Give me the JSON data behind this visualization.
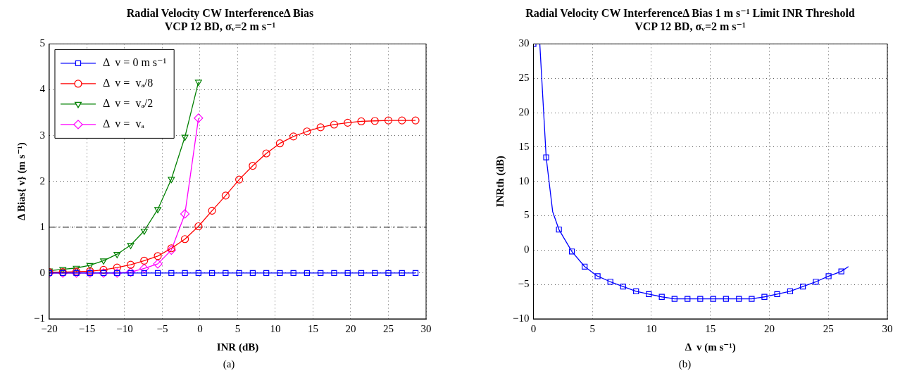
{
  "chart_data": [
    {
      "type": "line",
      "title": "Radial Velocity CW InterferenceΔ Bias",
      "subtitle": "VCP 12 BD, σᵥ=2 m s⁻¹",
      "xlabel": "INR (dB)",
      "ylabel": "Δ Bias{ v} (m s⁻¹)",
      "x": [
        -20,
        -18.2,
        -16.4,
        -14.6,
        -12.8,
        -11,
        -9.2,
        -7.4,
        -5.6,
        -3.8,
        -2,
        -0.2,
        1.6,
        3.4,
        5.2,
        7,
        8.8,
        10.6,
        12.4,
        14.2,
        16,
        17.8,
        19.6,
        21.4,
        23.2,
        25,
        26.8,
        28.6
      ],
      "series": [
        {
          "name": "Δ  v = 0 m s⁻¹",
          "color": "#0000ff",
          "marker": "square",
          "values": [
            0,
            0,
            0,
            0,
            0,
            0,
            0,
            0,
            0,
            0,
            0,
            0,
            0,
            0,
            0,
            0,
            0,
            0,
            0,
            0,
            0,
            0,
            0,
            0,
            0,
            0,
            0,
            0
          ]
        },
        {
          "name": "Δ  v =  vₐ/8",
          "color": "#ff0000",
          "marker": "circle",
          "values": [
            0.02,
            0.02,
            0.03,
            0.04,
            0.07,
            0.12,
            0.18,
            0.27,
            0.37,
            0.54,
            0.74,
            1.02,
            1.36,
            1.69,
            2.04,
            2.34,
            2.61,
            2.83,
            2.98,
            3.09,
            3.18,
            3.24,
            3.28,
            3.31,
            3.32,
            3.33,
            3.33,
            3.33
          ]
        },
        {
          "name": "Δ  v =  vₐ/2",
          "color": "#008000",
          "marker": "triangle",
          "x": [
            -20,
            -18.2,
            -16.4,
            -14.6,
            -12.8,
            -11,
            -9.2,
            -7.4,
            -5.6,
            -3.8,
            -2,
            -0.2
          ],
          "values": [
            0.05,
            0.08,
            0.11,
            0.17,
            0.27,
            0.41,
            0.61,
            0.92,
            1.39,
            2.05,
            2.97,
            4.17
          ]
        },
        {
          "name": "Δ  v =  vₐ",
          "color": "#ff00ff",
          "marker": "diamond",
          "x": [
            -20,
            -18.2,
            -16.4,
            -14.6,
            -12.8,
            -11,
            -9.2,
            -7.4,
            -5.6,
            -3.8,
            -2,
            -0.2
          ],
          "values": [
            0,
            0,
            0,
            0,
            0,
            0,
            0.02,
            0.1,
            0.2,
            0.5,
            1.29,
            3.38
          ]
        }
      ],
      "xlim": [
        -20,
        30
      ],
      "xticks": [
        -20,
        -15,
        -10,
        -5,
        0,
        5,
        10,
        15,
        20,
        25,
        30
      ],
      "ylim": [
        -1,
        5
      ],
      "yticks": [
        -1,
        0,
        1,
        2,
        3,
        4,
        5
      ],
      "ref_lines": [
        {
          "axis": "y",
          "value": 1,
          "color": "#000000",
          "line_style": "dashdot"
        }
      ],
      "grid": true,
      "legend": "top left",
      "annotations": [
        "(a)"
      ]
    },
    {
      "type": "line",
      "title": "Radial Velocity CW InterferenceΔ Bias 1 m s⁻¹ Limit INR Threshold",
      "subtitle": "VCP 12 BD, σᵥ=2 m s⁻¹",
      "xlabel": "Δ  v (m s⁻¹)",
      "ylabel": "INRth (dB)",
      "series": [
        {
          "type": "line",
          "color": "#0000ff",
          "marker": "none",
          "x": [
            0,
            0.54,
            1.08,
            1.63,
            2.16,
            3.26,
            4.34,
            5.44,
            6.52,
            7.6,
            8.7,
            9.78,
            10.88,
            11.96,
            13.06,
            14.14,
            15.24,
            16.32,
            17.42,
            18.5,
            19.58,
            20.66,
            21.76,
            22.84,
            23.94,
            25.02,
            26.1,
            26.7
          ],
          "values": [
            30,
            30,
            13.5,
            5.6,
            3,
            -0.2,
            -2.4,
            -3.8,
            -4.6,
            -5.3,
            -6,
            -6.4,
            -6.8,
            -7.1,
            -7.1,
            -7.1,
            -7.1,
            -7.1,
            -7.1,
            -7.1,
            -6.8,
            -6.4,
            -6,
            -5.3,
            -4.6,
            -3.8,
            -3.1,
            -2.4
          ]
        },
        {
          "type": "scatter",
          "color": "#0000ff",
          "marker": "square",
          "x": [
            0,
            1.08,
            2.16,
            3.26,
            4.34,
            5.44,
            6.52,
            7.6,
            8.7,
            9.78,
            10.88,
            11.96,
            13.06,
            14.14,
            15.24,
            16.32,
            17.42,
            18.5,
            19.58,
            20.66,
            21.76,
            22.84,
            23.94,
            25.02,
            26.1
          ],
          "values": [
            30,
            13.5,
            3,
            -0.2,
            -2.4,
            -3.8,
            -4.6,
            -5.3,
            -6,
            -6.4,
            -6.8,
            -7.1,
            -7.1,
            -7.1,
            -7.1,
            -7.1,
            -7.1,
            -7.1,
            -6.8,
            -6.4,
            -6,
            -5.3,
            -4.6,
            -3.8,
            -3.1
          ]
        }
      ],
      "xlim": [
        0,
        30
      ],
      "xticks": [
        0,
        5,
        10,
        15,
        20,
        25,
        30
      ],
      "ylim": [
        -10,
        30
      ],
      "yticks": [
        -10,
        -5,
        0,
        5,
        10,
        15,
        20,
        25,
        30
      ],
      "grid": true,
      "annotations": [
        "(b)"
      ]
    }
  ]
}
